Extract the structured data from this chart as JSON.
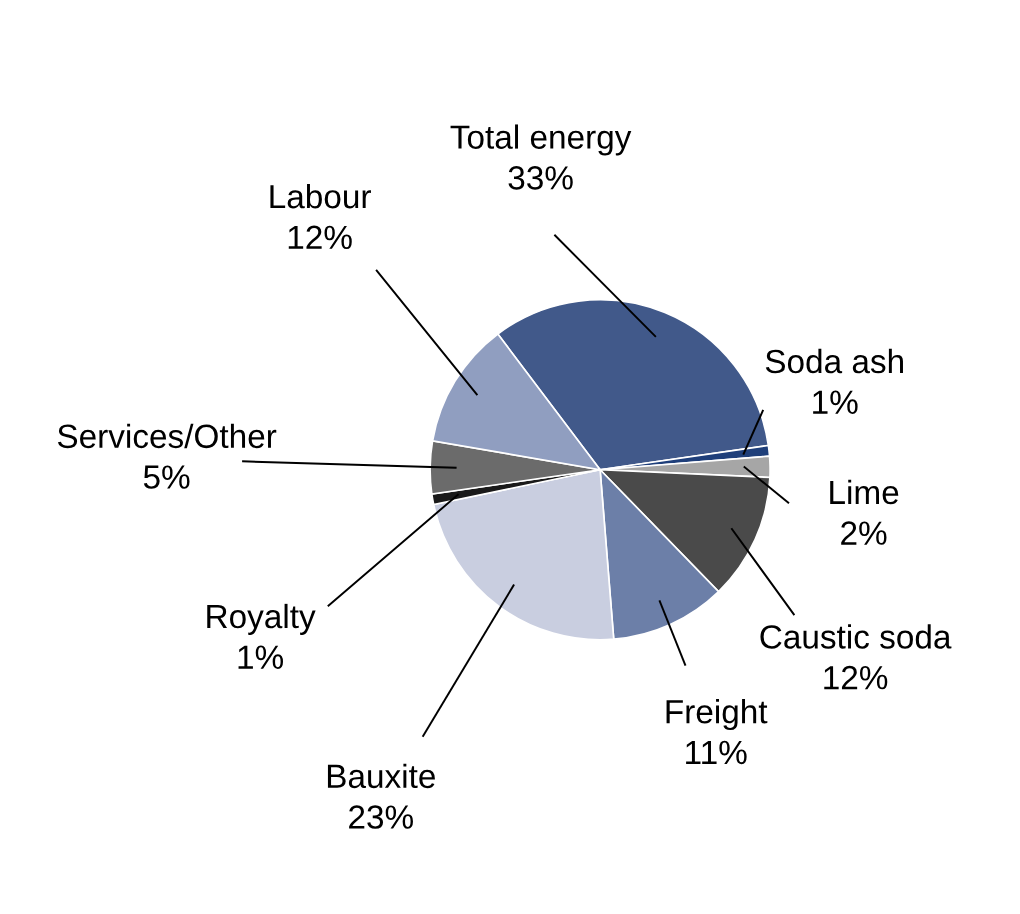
{
  "chart_data": {
    "type": "pie",
    "categories": [
      "Total energy",
      "Soda ash",
      "Lime",
      "Caustic soda",
      "Freight",
      "Bauxite",
      "Royalty",
      "Services/Other",
      "Labour"
    ],
    "values": [
      33,
      1,
      2,
      12,
      11,
      23,
      1,
      5,
      12
    ],
    "value_labels": [
      "33%",
      "1%",
      "2%",
      "12%",
      "11%",
      "23%",
      "1%",
      "5%",
      "12%"
    ],
    "colors": [
      "#41598a",
      "#1f3f7a",
      "#a6a6a6",
      "#4a4a4a",
      "#6c7fa8",
      "#c9cee0",
      "#1a1a1a",
      "#6b6b6b",
      "#909ec0"
    ],
    "legend": false
  }
}
